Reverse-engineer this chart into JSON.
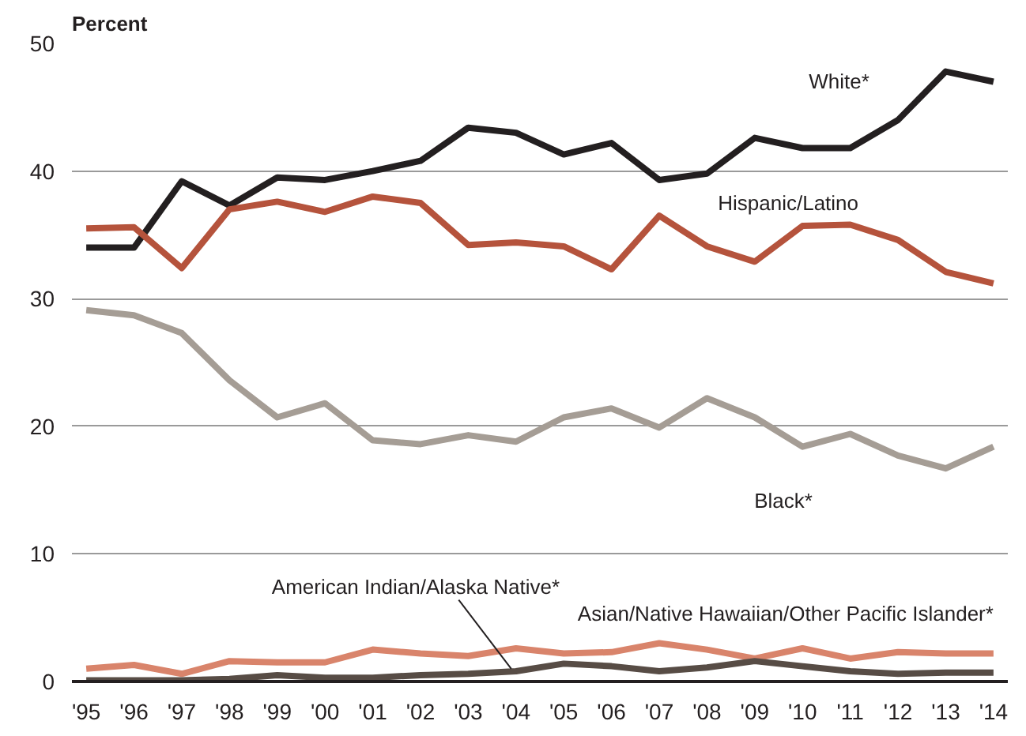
{
  "chart_data": {
    "type": "line",
    "ylabel": "Percent",
    "categories": [
      "'95",
      "'96",
      "'97",
      "'98",
      "'99",
      "'00",
      "'01",
      "'02",
      "'03",
      "'04",
      "'05",
      "'06",
      "'07",
      "'08",
      "'09",
      "'10",
      "'11",
      "'12",
      "'13",
      "'14"
    ],
    "series": [
      {
        "name": "White*",
        "color": "#231f20",
        "values": [
          34.0,
          34.0,
          39.2,
          37.3,
          39.5,
          39.3,
          40.0,
          40.8,
          43.4,
          43.0,
          41.3,
          42.2,
          39.3,
          39.8,
          42.6,
          41.8,
          41.8,
          44.0,
          47.8,
          47.0
        ]
      },
      {
        "name": "Hispanic/Latino",
        "color": "#b5533c",
        "values": [
          35.5,
          35.6,
          32.4,
          37.0,
          37.6,
          36.8,
          38.0,
          37.5,
          34.2,
          34.4,
          34.1,
          32.3,
          36.5,
          34.1,
          32.9,
          35.7,
          35.8,
          34.6,
          32.1,
          31.2
        ]
      },
      {
        "name": "Black*",
        "color": "#a59d95",
        "values": [
          29.1,
          28.7,
          27.3,
          23.6,
          20.7,
          21.8,
          18.9,
          18.6,
          19.3,
          18.8,
          20.7,
          21.4,
          19.9,
          22.2,
          20.7,
          18.4,
          19.4,
          17.7,
          16.7,
          18.4
        ]
      },
      {
        "name": "Asian/Native Hawaiian/Other Pacific Islander*",
        "color": "#d9846b",
        "values": [
          1.0,
          1.3,
          0.6,
          1.6,
          1.5,
          1.5,
          2.5,
          2.2,
          2.0,
          2.6,
          2.2,
          2.3,
          3.0,
          2.5,
          1.8,
          2.6,
          1.8,
          2.3,
          2.2,
          2.2
        ]
      },
      {
        "name": "American Indian/Alaska Native*",
        "color": "#574c45",
        "values": [
          0.1,
          0.1,
          0.1,
          0.2,
          0.5,
          0.3,
          0.3,
          0.5,
          0.6,
          0.8,
          1.4,
          1.2,
          0.8,
          1.1,
          1.6,
          1.2,
          0.8,
          0.6,
          0.7,
          0.7
        ]
      }
    ],
    "ylim": [
      0,
      50
    ],
    "yticks": [
      0,
      10,
      20,
      30,
      40,
      50
    ],
    "grid": "y",
    "line_style": "solid"
  }
}
